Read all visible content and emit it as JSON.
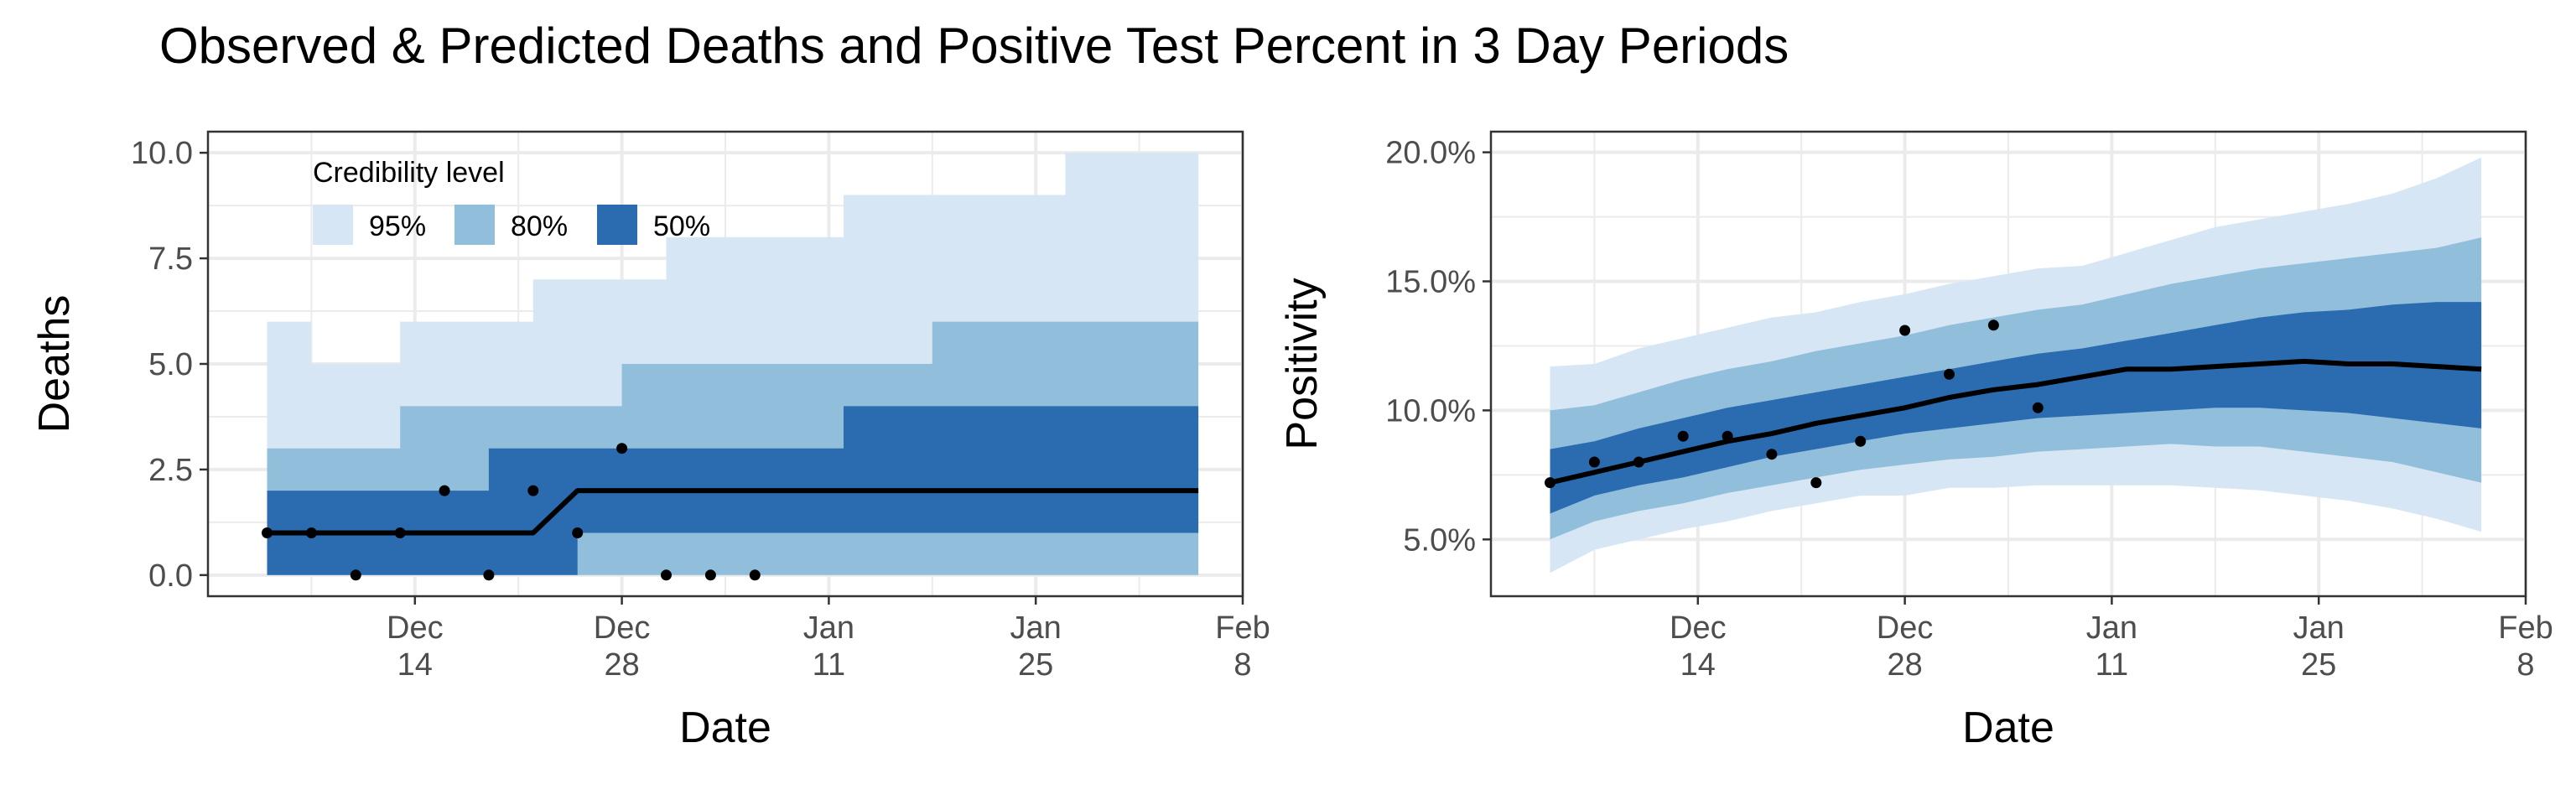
{
  "title": "Observed & Predicted Deaths and Positive Test Percent in 3 Day Periods",
  "colors": {
    "band95": "#d6e6f4",
    "band80": "#91bfdb",
    "band50": "#2b6cb0",
    "median": "#000000",
    "points": "#000000"
  },
  "chart_data": [
    {
      "type": "area",
      "panel": "deaths",
      "xlabel": "Date",
      "ylabel": "Deaths",
      "x_ticks": [
        {
          "date": "2020-12-14",
          "month": "Dec",
          "day": "14"
        },
        {
          "date": "2020-12-28",
          "month": "Dec",
          "day": "28"
        },
        {
          "date": "2021-01-11",
          "month": "Jan",
          "day": "11"
        },
        {
          "date": "2021-01-25",
          "month": "Jan",
          "day": "25"
        },
        {
          "date": "2021-02-08",
          "month": "Feb",
          "day": "8"
        }
      ],
      "xlim": [
        "2020-11-30",
        "2021-02-08"
      ],
      "y_ticks": [
        "0.0",
        "2.5",
        "5.0",
        "7.5",
        "10.0"
      ],
      "y_tick_values": [
        0,
        2.5,
        5,
        7.5,
        10
      ],
      "ylim": [
        -0.5,
        10.5
      ],
      "grid": true,
      "legend": {
        "title": "Credibility level",
        "position": "top-left inside",
        "items": [
          "95%",
          "80%",
          "50%"
        ]
      },
      "bands": {
        "x": [
          "2020-12-04",
          "2020-12-07",
          "2020-12-10",
          "2020-12-13",
          "2020-12-16",
          "2020-12-19",
          "2020-12-22",
          "2020-12-25",
          "2020-12-28",
          "2020-12-31",
          "2021-01-03",
          "2021-01-06",
          "2021-01-09",
          "2021-01-12",
          "2021-01-15",
          "2021-01-18",
          "2021-01-21",
          "2021-01-24",
          "2021-01-27",
          "2021-01-30",
          "2021-02-02",
          "2021-02-05"
        ],
        "lo95": [
          0,
          0,
          0,
          0,
          0,
          0,
          0,
          0,
          0,
          0,
          0,
          0,
          0,
          0,
          0,
          0,
          0,
          0,
          0,
          0,
          0,
          0
        ],
        "hi95": [
          6,
          5,
          5,
          6,
          6,
          6,
          7,
          7,
          7,
          8,
          8,
          8,
          8,
          9,
          9,
          9,
          9,
          9,
          10,
          10,
          10,
          10
        ],
        "lo80": [
          0,
          0,
          0,
          0,
          0,
          0,
          0,
          0,
          0,
          0,
          0,
          0,
          0,
          0,
          0,
          0,
          0,
          0,
          0,
          0,
          0,
          0
        ],
        "hi80": [
          3,
          3,
          3,
          4,
          4,
          4,
          4,
          4,
          5,
          5,
          5,
          5,
          5,
          5,
          5,
          6,
          6,
          6,
          6,
          6,
          6,
          6
        ],
        "lo50": [
          0,
          0,
          0,
          0,
          0,
          0,
          0,
          1,
          1,
          1,
          1,
          1,
          1,
          1,
          1,
          1,
          1,
          1,
          1,
          1,
          1,
          1
        ],
        "hi50": [
          2,
          2,
          2,
          2,
          2,
          3,
          3,
          3,
          3,
          3,
          3,
          3,
          3,
          4,
          4,
          4,
          4,
          4,
          4,
          4,
          4,
          4
        ]
      },
      "median": {
        "x": [
          "2020-12-04",
          "2020-12-22",
          "2020-12-25",
          "2021-02-05"
        ],
        "y": [
          1,
          1,
          2,
          2
        ]
      },
      "observed": {
        "x": [
          "2020-12-04",
          "2020-12-07",
          "2020-12-10",
          "2020-12-13",
          "2020-12-16",
          "2020-12-19",
          "2020-12-22",
          "2020-12-25",
          "2020-12-28",
          "2020-12-31",
          "2021-01-03",
          "2021-01-06"
        ],
        "y": [
          1,
          1,
          0,
          1,
          2,
          0,
          2,
          1,
          3,
          0,
          0,
          0
        ]
      }
    },
    {
      "type": "area",
      "panel": "positivity",
      "xlabel": "Date",
      "ylabel": "Positivity",
      "x_ticks": [
        {
          "date": "2020-12-14",
          "month": "Dec",
          "day": "14"
        },
        {
          "date": "2020-12-28",
          "month": "Dec",
          "day": "28"
        },
        {
          "date": "2021-01-11",
          "month": "Jan",
          "day": "11"
        },
        {
          "date": "2021-01-25",
          "month": "Jan",
          "day": "25"
        },
        {
          "date": "2021-02-08",
          "month": "Feb",
          "day": "8"
        }
      ],
      "xlim": [
        "2020-11-30",
        "2021-02-08"
      ],
      "y_ticks": [
        "5.0%",
        "10.0%",
        "15.0%",
        "20.0%"
      ],
      "y_tick_values": [
        0.05,
        0.1,
        0.15,
        0.2
      ],
      "ylim": [
        0.028,
        0.208
      ],
      "grid": true,
      "bands": {
        "x": [
          "2020-12-04",
          "2020-12-07",
          "2020-12-10",
          "2020-12-13",
          "2020-12-16",
          "2020-12-19",
          "2020-12-22",
          "2020-12-25",
          "2020-12-28",
          "2020-12-31",
          "2021-01-03",
          "2021-01-06",
          "2021-01-09",
          "2021-01-12",
          "2021-01-15",
          "2021-01-18",
          "2021-01-21",
          "2021-01-24",
          "2021-01-27",
          "2021-01-30",
          "2021-02-02",
          "2021-02-05"
        ],
        "lo95": [
          0.037,
          0.046,
          0.05,
          0.054,
          0.057,
          0.061,
          0.064,
          0.067,
          0.067,
          0.07,
          0.07,
          0.071,
          0.071,
          0.071,
          0.071,
          0.07,
          0.069,
          0.067,
          0.065,
          0.062,
          0.058,
          0.053
        ],
        "hi95": [
          0.117,
          0.118,
          0.124,
          0.128,
          0.132,
          0.136,
          0.138,
          0.142,
          0.145,
          0.149,
          0.152,
          0.155,
          0.156,
          0.161,
          0.166,
          0.171,
          0.174,
          0.177,
          0.18,
          0.184,
          0.19,
          0.198
        ],
        "lo80": [
          0.05,
          0.057,
          0.061,
          0.064,
          0.068,
          0.071,
          0.074,
          0.077,
          0.079,
          0.081,
          0.082,
          0.084,
          0.085,
          0.086,
          0.087,
          0.086,
          0.086,
          0.084,
          0.082,
          0.08,
          0.076,
          0.072
        ],
        "hi80": [
          0.1,
          0.102,
          0.107,
          0.112,
          0.116,
          0.119,
          0.123,
          0.126,
          0.129,
          0.133,
          0.136,
          0.139,
          0.141,
          0.145,
          0.149,
          0.152,
          0.155,
          0.157,
          0.159,
          0.161,
          0.163,
          0.167
        ],
        "lo50": [
          0.06,
          0.067,
          0.071,
          0.074,
          0.078,
          0.082,
          0.085,
          0.088,
          0.091,
          0.093,
          0.095,
          0.097,
          0.098,
          0.099,
          0.1,
          0.101,
          0.101,
          0.1,
          0.099,
          0.097,
          0.095,
          0.093
        ],
        "hi50": [
          0.085,
          0.088,
          0.093,
          0.097,
          0.101,
          0.104,
          0.107,
          0.11,
          0.113,
          0.116,
          0.119,
          0.122,
          0.124,
          0.127,
          0.13,
          0.133,
          0.136,
          0.138,
          0.139,
          0.141,
          0.142,
          0.142
        ]
      },
      "median": {
        "x": [
          "2020-12-04",
          "2020-12-07",
          "2020-12-10",
          "2020-12-13",
          "2020-12-16",
          "2020-12-19",
          "2020-12-22",
          "2020-12-25",
          "2020-12-28",
          "2020-12-31",
          "2021-01-03",
          "2021-01-06",
          "2021-01-09",
          "2021-01-12",
          "2021-01-15",
          "2021-01-18",
          "2021-01-21",
          "2021-01-24",
          "2021-01-27",
          "2021-01-30",
          "2021-02-02",
          "2021-02-05"
        ],
        "y": [
          0.072,
          0.076,
          0.08,
          0.084,
          0.088,
          0.091,
          0.095,
          0.098,
          0.101,
          0.105,
          0.108,
          0.11,
          0.113,
          0.116,
          0.116,
          0.117,
          0.118,
          0.119,
          0.118,
          0.118,
          0.117,
          0.116
        ]
      },
      "observed": {
        "x": [
          "2020-12-04",
          "2020-12-07",
          "2020-12-10",
          "2020-12-13",
          "2020-12-16",
          "2020-12-19",
          "2020-12-22",
          "2020-12-25",
          "2020-12-28",
          "2020-12-31",
          "2021-01-03",
          "2021-01-06"
        ],
        "y": [
          0.072,
          0.08,
          0.08,
          0.09,
          0.09,
          0.083,
          0.072,
          0.088,
          0.131,
          0.114,
          0.133,
          0.101
        ]
      }
    }
  ]
}
